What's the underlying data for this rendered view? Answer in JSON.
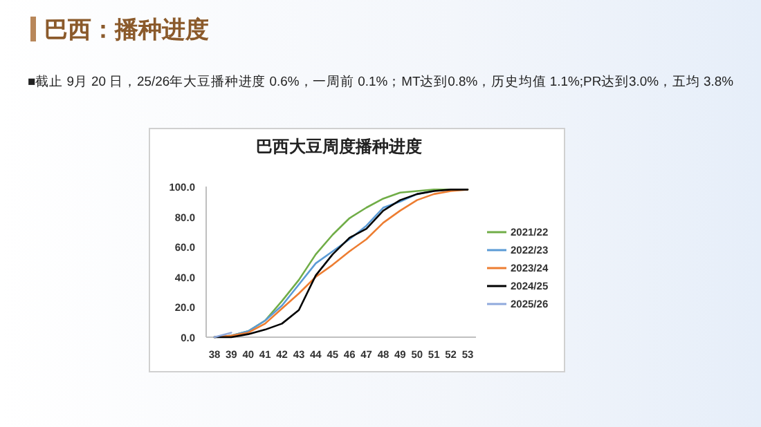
{
  "chart_data": {
    "type": "line",
    "title": "巴西大豆周度播种进度",
    "annotations": [
      "巴西：播种进度",
      "■截止 9月 20 日，25/26年大豆播种进度 0.6%，一周前 0.1%；MT达到0.8%，历史均值 1.1%;PR达到3.0%，五均 3.8%"
    ],
    "categories": [
      "38",
      "39",
      "40",
      "41",
      "42",
      "43",
      "44",
      "45",
      "46",
      "47",
      "48",
      "49",
      "50",
      "51",
      "52",
      "53"
    ],
    "series": [
      {
        "name": "2021/22",
        "color": "#70ad47",
        "values": [
          0,
          1,
          4,
          11,
          24,
          38,
          55,
          68,
          79,
          86,
          92,
          96,
          97,
          98,
          98,
          98
        ]
      },
      {
        "name": "2022/23",
        "color": "#5b9bd5",
        "values": [
          0,
          1,
          4,
          11,
          21,
          35,
          49,
          57,
          65,
          74,
          86,
          90,
          95,
          97,
          null,
          null
        ]
      },
      {
        "name": "2023/24",
        "color": "#ed7d31",
        "values": [
          0,
          1,
          3,
          9,
          19,
          29,
          40,
          48,
          57,
          65,
          76,
          84,
          91,
          95,
          97,
          98
        ]
      },
      {
        "name": "2024/25",
        "color": "#000000",
        "values": [
          0,
          0,
          2,
          5,
          9,
          18,
          41,
          55,
          66,
          72,
          84,
          91,
          95,
          97,
          98,
          98
        ]
      },
      {
        "name": "2025/26",
        "color": "#8fa9dc",
        "values": [
          0,
          3,
          null,
          null,
          null,
          null,
          null,
          null,
          null,
          null,
          null,
          null,
          null,
          null,
          null,
          null
        ]
      }
    ],
    "ylim": [
      0,
      100
    ],
    "yticks": [
      {
        "value": 0,
        "label": "0.0"
      },
      {
        "value": 20,
        "label": "20.0"
      },
      {
        "value": 40,
        "label": "40.0"
      },
      {
        "value": 60,
        "label": "60.0"
      },
      {
        "value": 80,
        "label": "80.0"
      },
      {
        "value": 100,
        "label": "100.0"
      }
    ],
    "legend": "right"
  }
}
